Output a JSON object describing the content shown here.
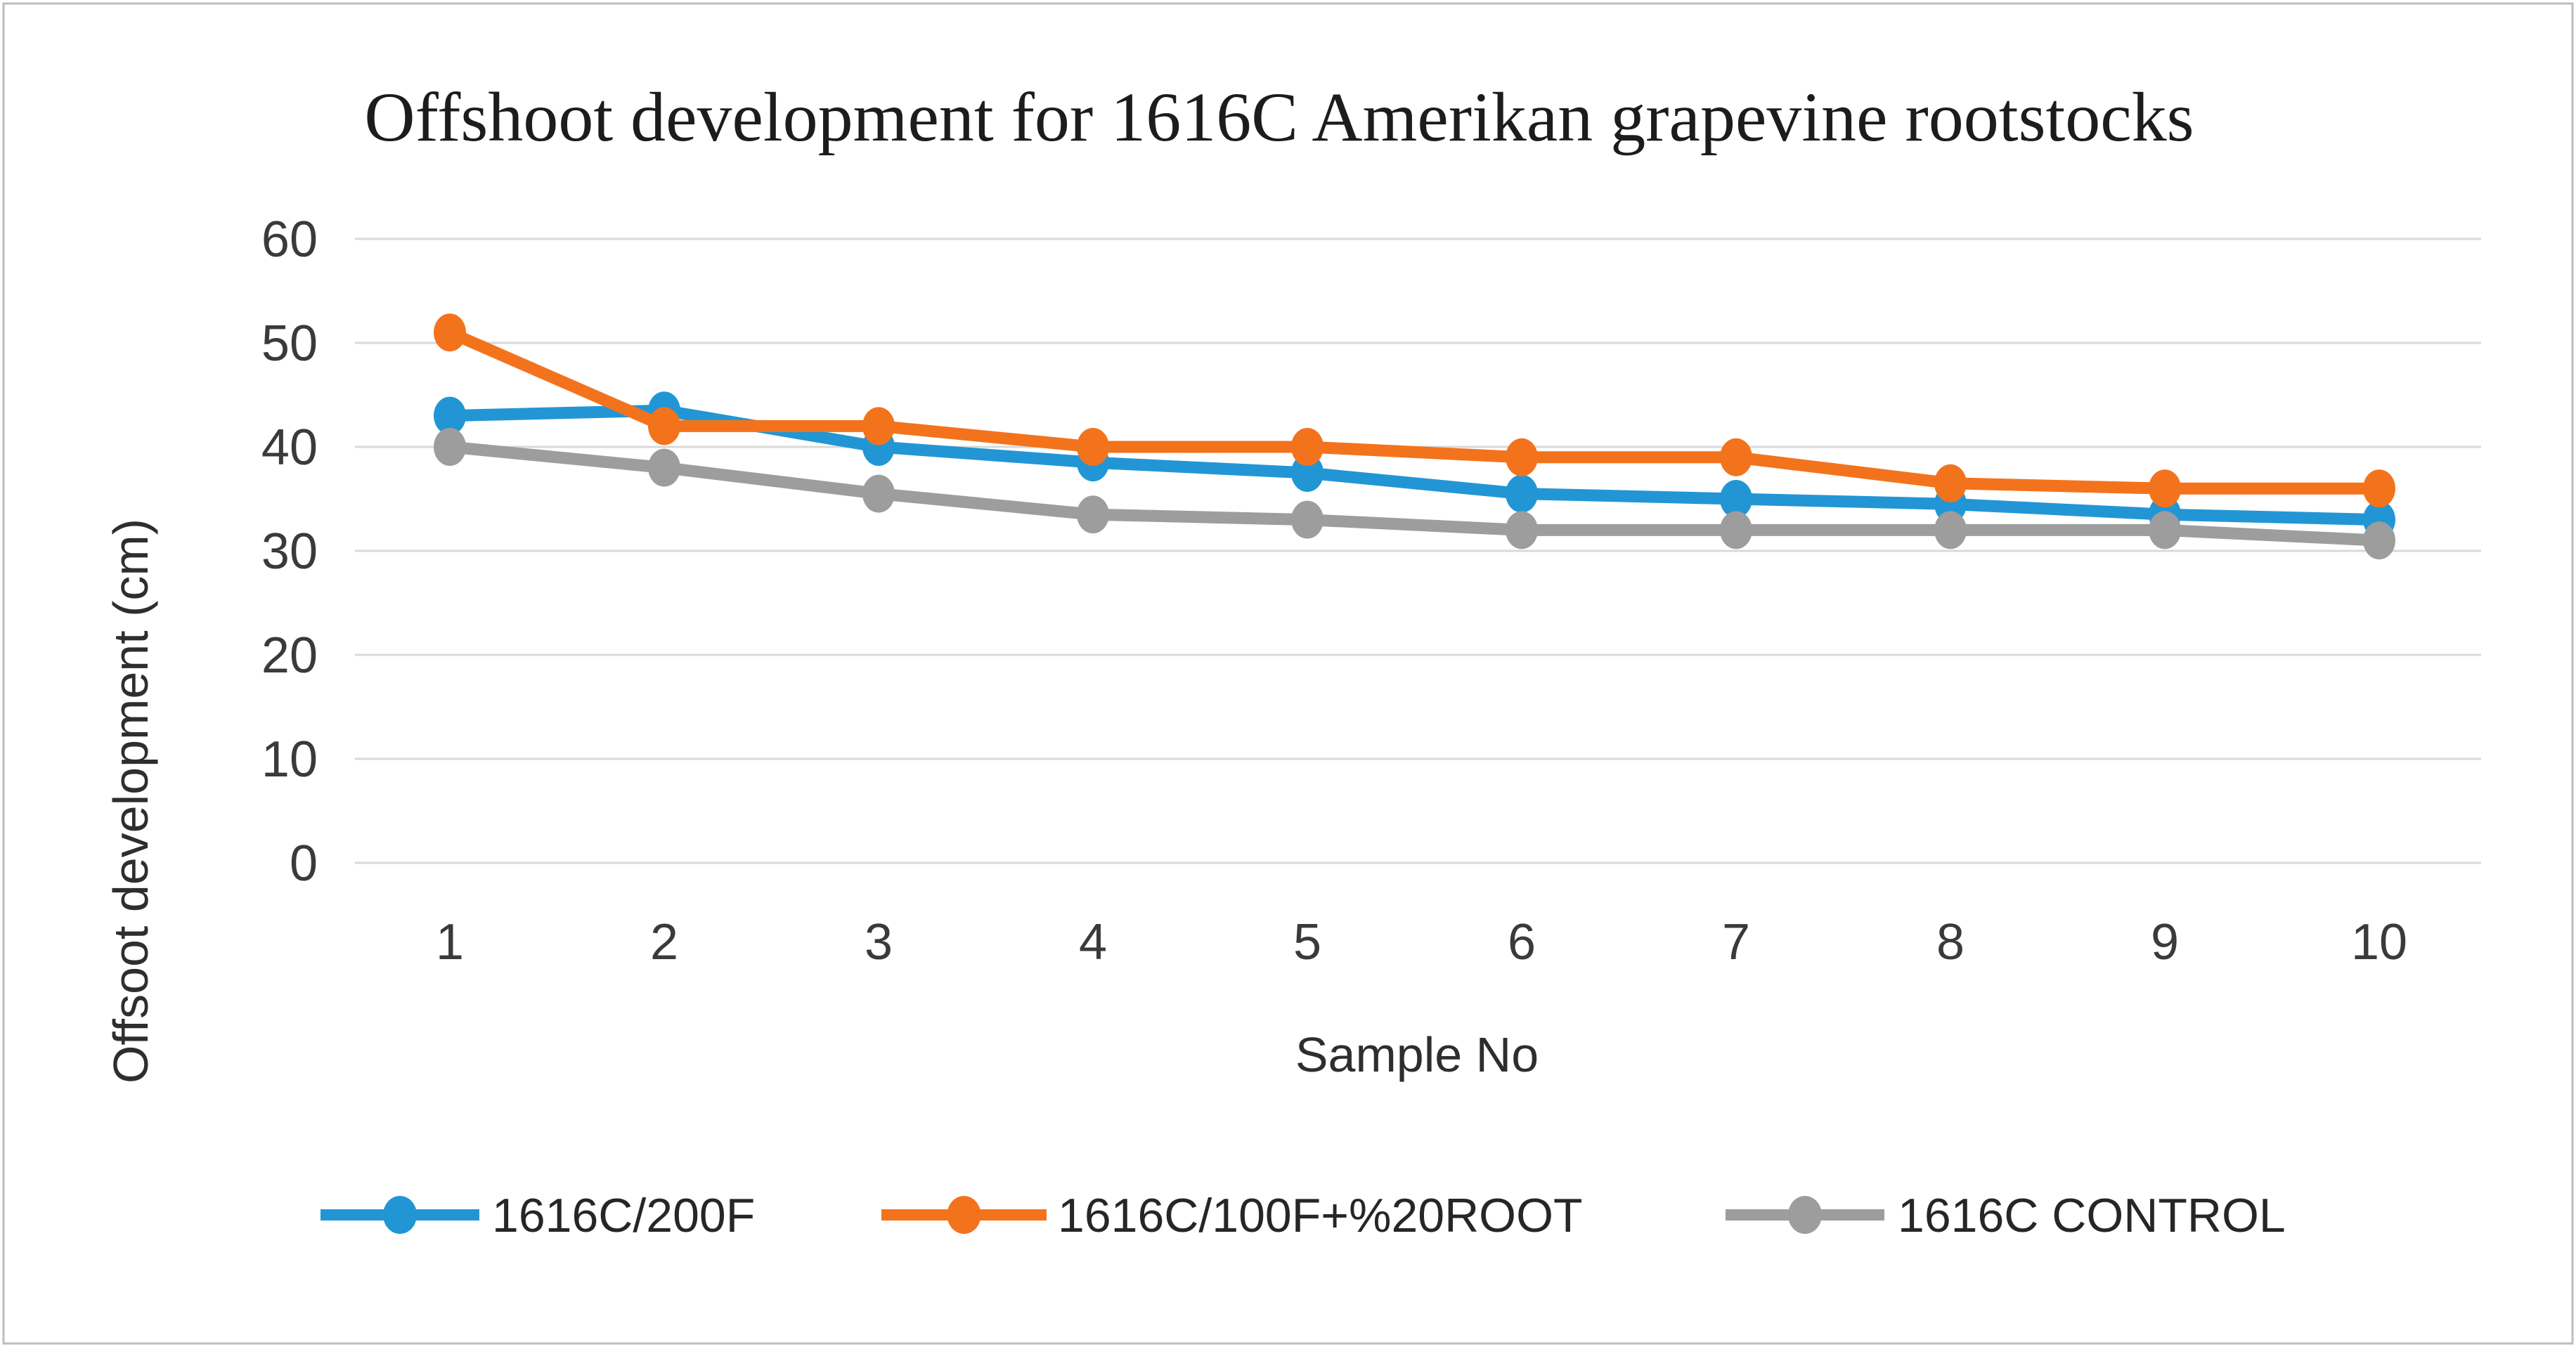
{
  "chart_data": {
    "type": "line",
    "title": "Offshoot development for 1616C Amerikan grapevine rootstocks",
    "xlabel": "Sample No",
    "ylabel": "Offsoot development (cm)",
    "categories": [
      "1",
      "2",
      "3",
      "4",
      "5",
      "6",
      "7",
      "8",
      "9",
      "10"
    ],
    "ylim": [
      0,
      60
    ],
    "ytick_step": 10,
    "yticks": [
      0,
      10,
      20,
      30,
      40,
      50,
      60
    ],
    "grid": true,
    "legend_position": "bottom",
    "marker": "circle",
    "series": [
      {
        "name": "1616C/200F",
        "color": "#2296d5",
        "values": [
          43,
          43.5,
          40,
          38.5,
          37.5,
          35.5,
          35,
          34.5,
          33.5,
          33
        ]
      },
      {
        "name": "1616C/100F+%20ROOT",
        "color": "#f3731d",
        "values": [
          51,
          42,
          42,
          40,
          40,
          39,
          39,
          36.5,
          36,
          36
        ]
      },
      {
        "name": "1616C CONTROL",
        "color": "#9d9d9d",
        "values": [
          40,
          38,
          35.5,
          33.5,
          33,
          32,
          32,
          32,
          32,
          31
        ]
      }
    ],
    "colors": {
      "gridline": "#d9d9d9",
      "frame_border": "#bdbdbd",
      "title_text": "#1c1c1c",
      "axis_text": "#3a3a3a",
      "background": "#ffffff"
    }
  }
}
